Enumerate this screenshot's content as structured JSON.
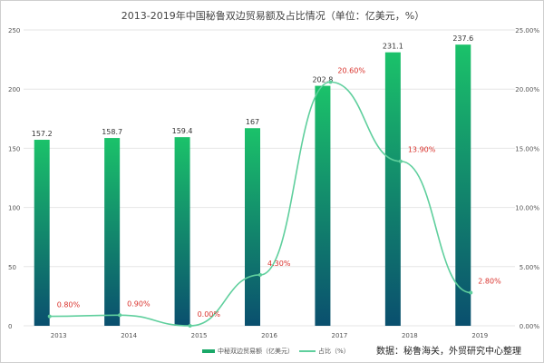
{
  "chart_data": {
    "type": "bar+line",
    "title": "2013-2019年中国秘鲁双边贸易额及占比情况（单位：亿美元，%）",
    "categories": [
      "2013",
      "2014",
      "2015",
      "2016",
      "2017",
      "2018",
      "2019"
    ],
    "series": [
      {
        "name": "中秘双边贸易额（亿美元）",
        "type": "bar",
        "axis": "left",
        "values": [
          157.2,
          158.7,
          159.4,
          167,
          202.8,
          231.1,
          237.6
        ],
        "labels": [
          "157.2",
          "158.7",
          "159.4",
          "167",
          "202.8",
          "231.1",
          "237.6"
        ]
      },
      {
        "name": "占比（%）",
        "type": "line",
        "axis": "right",
        "values": [
          0.8,
          0.9,
          0.0,
          4.3,
          20.6,
          13.9,
          2.8
        ],
        "labels": [
          "0.80%",
          "0.90%",
          "0.00%",
          "4.30%",
          "20.60%",
          "13.90%",
          "2.80%"
        ]
      }
    ],
    "y_left": {
      "range": [
        0,
        250
      ],
      "ticks": [
        "0",
        "50",
        "100",
        "150",
        "200",
        "250"
      ]
    },
    "y_right": {
      "range": [
        0,
        25
      ],
      "ticks": [
        "0.00%",
        "5.00%",
        "10.00%",
        "15.00%",
        "20.00%",
        "25.00%"
      ]
    },
    "grid": true,
    "legend": "bottom",
    "colors": {
      "bar_top": "#1bc26a",
      "bar_bottom": "#0a4f6e",
      "line": "#5fcf9d",
      "label": "#d9312b"
    }
  },
  "source": "数据：秘鲁海关，外贸研究中心整理"
}
